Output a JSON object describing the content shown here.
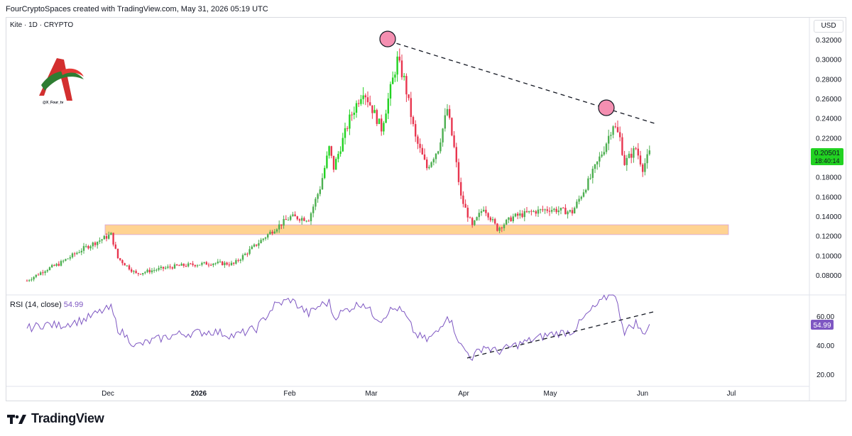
{
  "header": {
    "text": "FourCryptoSpaces created with TradingView.com, May 31, 2026 05:19 UTC"
  },
  "symbol": {
    "text": "Kite · 1D · CRYPTO"
  },
  "currency": "USD",
  "rsi": {
    "label": "RSI (14, close)",
    "value": "54.99"
  },
  "brand": {
    "name": "TradingView"
  },
  "watermark": {
    "handle": "@X_Four_tv"
  },
  "colors": {
    "up": "#4caf50",
    "up_bright": "#22d222",
    "down": "#e8364f",
    "rsi": "#7e57c2",
    "zone": "#ffcc80",
    "marker": "#f48fb1"
  },
  "chart_data": {
    "type": "candlestick",
    "price_axis": {
      "ticks": [
        "0.32000",
        "0.30000",
        "0.28000",
        "0.26000",
        "0.24000",
        "0.22000",
        "0.20000",
        "0.18000",
        "0.16000",
        "0.14000",
        "0.12000",
        "0.10000",
        "0.08000"
      ],
      "range": [
        0.066,
        0.33
      ]
    },
    "rsi_axis": {
      "ticks": [
        "60.00",
        "40.00",
        "20.00"
      ],
      "range": [
        10,
        75
      ]
    },
    "time_axis": {
      "labels": [
        "Dec",
        "2026",
        "Feb",
        "Mar",
        "Apr",
        "May",
        "Jun",
        "Jul"
      ]
    },
    "last_price": "0.20501",
    "countdown": "18:40:14",
    "rsi_last": "54.99",
    "support_zone": {
      "low": 0.122,
      "high": 0.132
    },
    "series": [
      {
        "name": "price",
        "keypoints": [
          [
            0,
            0.075
          ],
          [
            8,
            0.086
          ],
          [
            14,
            0.092
          ],
          [
            25,
            0.108
          ],
          [
            37,
            0.122
          ],
          [
            40,
            0.098
          ],
          [
            48,
            0.082
          ],
          [
            56,
            0.086
          ],
          [
            66,
            0.09
          ],
          [
            82,
            0.093
          ],
          [
            91,
            0.092
          ],
          [
            101,
            0.112
          ],
          [
            109,
            0.128
          ],
          [
            116,
            0.14
          ],
          [
            124,
            0.138
          ],
          [
            129,
            0.17
          ],
          [
            133,
            0.21
          ],
          [
            135,
            0.19
          ],
          [
            142,
            0.24
          ],
          [
            148,
            0.27
          ],
          [
            152,
            0.25
          ],
          [
            156,
            0.23
          ],
          [
            159,
            0.26
          ],
          [
            163,
            0.3
          ],
          [
            166,
            0.28
          ],
          [
            171,
            0.22
          ],
          [
            176,
            0.19
          ],
          [
            181,
            0.21
          ],
          [
            185,
            0.25
          ],
          [
            188,
            0.21
          ],
          [
            191,
            0.16
          ],
          [
            196,
            0.13
          ],
          [
            201,
            0.15
          ],
          [
            207,
            0.128
          ],
          [
            214,
            0.14
          ],
          [
            222,
            0.145
          ],
          [
            230,
            0.148
          ],
          [
            240,
            0.145
          ],
          [
            248,
            0.18
          ],
          [
            254,
            0.21
          ],
          [
            258,
            0.235
          ],
          [
            261,
            0.22
          ],
          [
            263,
            0.195
          ],
          [
            268,
            0.21
          ],
          [
            271,
            0.19
          ],
          [
            274,
            0.205
          ]
        ]
      },
      {
        "name": "RSI",
        "keypoints": [
          [
            0,
            52
          ],
          [
            8,
            55
          ],
          [
            14,
            54
          ],
          [
            25,
            58
          ],
          [
            33,
            64
          ],
          [
            37,
            66
          ],
          [
            40,
            52
          ],
          [
            48,
            40
          ],
          [
            56,
            44
          ],
          [
            66,
            48
          ],
          [
            82,
            50
          ],
          [
            91,
            47
          ],
          [
            101,
            52
          ],
          [
            109,
            68
          ],
          [
            116,
            72
          ],
          [
            124,
            62
          ],
          [
            129,
            68
          ],
          [
            133,
            70
          ],
          [
            135,
            60
          ],
          [
            142,
            66
          ],
          [
            148,
            70
          ],
          [
            152,
            62
          ],
          [
            156,
            58
          ],
          [
            159,
            64
          ],
          [
            163,
            66
          ],
          [
            166,
            62
          ],
          [
            171,
            48
          ],
          [
            176,
            44
          ],
          [
            181,
            50
          ],
          [
            185,
            62
          ],
          [
            188,
            52
          ],
          [
            191,
            40
          ],
          [
            196,
            32
          ],
          [
            201,
            40
          ],
          [
            207,
            36
          ],
          [
            214,
            40
          ],
          [
            222,
            44
          ],
          [
            230,
            48
          ],
          [
            240,
            50
          ],
          [
            248,
            64
          ],
          [
            254,
            72
          ],
          [
            258,
            78
          ],
          [
            261,
            62
          ],
          [
            263,
            50
          ],
          [
            268,
            56
          ],
          [
            271,
            48
          ],
          [
            274,
            54.99
          ]
        ]
      }
    ]
  }
}
